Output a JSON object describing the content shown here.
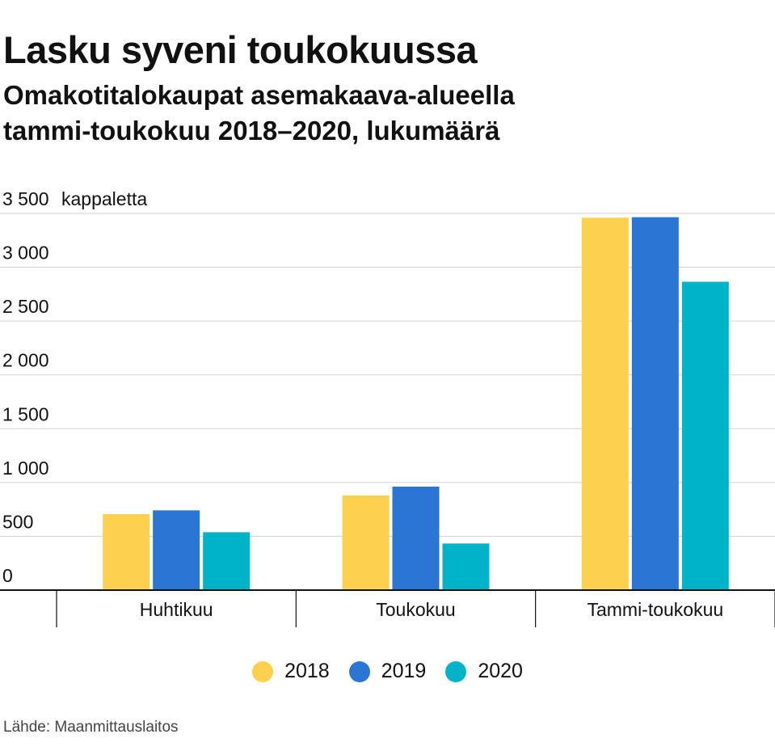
{
  "title": "Lasku syveni toukokuussa",
  "subtitle_lines": [
    "Omakotitalokaupat asemakaava-alueella",
    "tammi-toukokuu 2018–2020, lukumäärä"
  ],
  "source": "Lähde: Maanmittauslaitos",
  "chart_data": {
    "type": "bar",
    "title": "Lasku syveni toukokuussa",
    "ylabel": "kappaletta",
    "xlabel": "",
    "ylim": [
      0,
      3500
    ],
    "yticks": [
      0,
      500,
      1000,
      1500,
      2000,
      2500,
      3000,
      3500
    ],
    "ytick_labels": [
      "0",
      "500",
      "1 000",
      "1 500",
      "2 000",
      "2 500",
      "3 000",
      "3 500"
    ],
    "categories": [
      "Huhtikuu",
      "Toukokuu",
      "Tammi-toukokuu"
    ],
    "series": [
      {
        "name": "2018",
        "color": "#fdd14d",
        "values": [
          706,
          880,
          3460
        ]
      },
      {
        "name": "2019",
        "color": "#2b75d4",
        "values": [
          741,
          962,
          3465
        ]
      },
      {
        "name": "2020",
        "color": "#00b3c8",
        "values": [
          538,
          433,
          2865
        ]
      }
    ],
    "grid": true,
    "legend": "bottom-center"
  }
}
